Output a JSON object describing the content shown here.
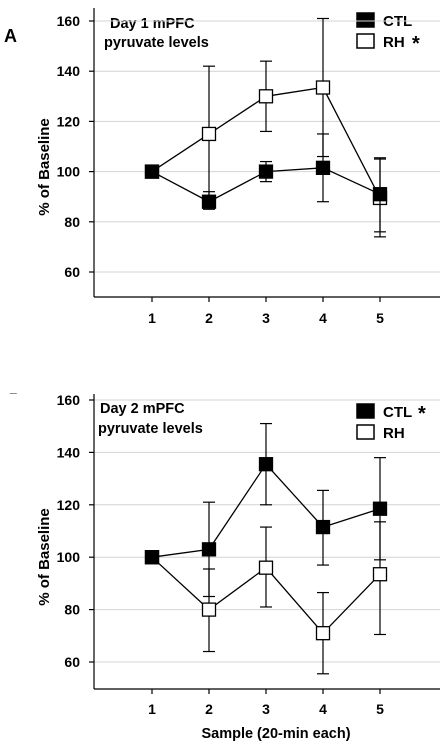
{
  "chart_data": [
    {
      "type": "line",
      "panel_label": "A",
      "title_line1": "Day 1 mPFC",
      "title_line2": "pyruvate  levels",
      "ylabel": "% of Baseline",
      "xlabel": "",
      "categories": [
        "1",
        "2",
        "3",
        "4",
        "5"
      ],
      "yticks": [
        "60",
        "80",
        "100",
        "120",
        "140",
        "160"
      ],
      "ylim": [
        50,
        165
      ],
      "grid": true,
      "legend_position": "top-right",
      "series": [
        {
          "name": "CTL",
          "marker": "filled-square",
          "values": [
            100,
            88,
            100,
            101.5,
            91
          ],
          "err_upper": [
            100,
            92,
            104,
            115,
            105
          ],
          "err_lower": [
            100,
            85,
            96,
            88,
            76
          ]
        },
        {
          "name": "RH",
          "suffix": "*",
          "marker": "open-square",
          "values": [
            100,
            115,
            130,
            133.5,
            89.5
          ],
          "err_upper": [
            100,
            142,
            144,
            161,
            105.5
          ],
          "err_lower": [
            100,
            88,
            116,
            106,
            74
          ]
        }
      ]
    },
    {
      "type": "line",
      "panel_label": "_",
      "title_line1": "Day 2 mPFC",
      "title_line2": "pyruvate levels",
      "ylabel": "% of Baseline",
      "xlabel": "Sample (20-min each)",
      "categories": [
        "1",
        "2",
        "3",
        "4",
        "5"
      ],
      "yticks": [
        "60",
        "80",
        "100",
        "120",
        "140",
        "160"
      ],
      "ylim": [
        48,
        165
      ],
      "grid": true,
      "legend_position": "top-right",
      "series": [
        {
          "name": "CTL",
          "suffix": "*",
          "marker": "filled-square",
          "values": [
            100,
            103,
            135.5,
            111.5,
            118.5
          ],
          "err_upper": [
            100,
            121,
            151,
            125.5,
            138
          ],
          "err_lower": [
            100,
            85,
            120,
            97,
            99
          ]
        },
        {
          "name": "RH",
          "marker": "open-square",
          "values": [
            100,
            80,
            96,
            71,
            93.5
          ],
          "err_upper": [
            100,
            95.5,
            111.5,
            86.5,
            113.5
          ],
          "err_lower": [
            100,
            64,
            81,
            55.5,
            70.5
          ]
        }
      ]
    }
  ]
}
